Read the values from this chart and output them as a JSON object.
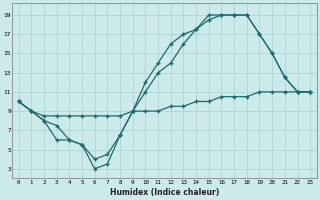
{
  "xlabel": "Humidex (Indice chaleur)",
  "bg_color": "#cdeaea",
  "grid_color": "#add4d4",
  "line_color": "#1a6b6b",
  "xlim": [
    -0.5,
    23.5
  ],
  "ylim": [
    2,
    20.2
  ],
  "xticks": [
    0,
    1,
    2,
    3,
    4,
    5,
    6,
    7,
    8,
    9,
    10,
    11,
    12,
    13,
    14,
    15,
    16,
    17,
    18,
    19,
    20,
    21,
    22,
    23
  ],
  "yticks": [
    3,
    5,
    7,
    9,
    11,
    13,
    15,
    17,
    19
  ],
  "line1_x": [
    0,
    1,
    2,
    3,
    4,
    5,
    6,
    7,
    8,
    9,
    10,
    11,
    12,
    13,
    14,
    15,
    16,
    17,
    18,
    19,
    20,
    21,
    22,
    23
  ],
  "line1_y": [
    10,
    9,
    8.5,
    8.5,
    8.5,
    8.5,
    8.5,
    8.5,
    8.5,
    9,
    9,
    9,
    9.5,
    9.5,
    10,
    10,
    10.5,
    10.5,
    10.5,
    11,
    11,
    11,
    11,
    11
  ],
  "line2_x": [
    0,
    1,
    2,
    3,
    4,
    5,
    6,
    7,
    8,
    9,
    10,
    11,
    12,
    13,
    14,
    15,
    16,
    17,
    18,
    19,
    20,
    21,
    22,
    23
  ],
  "line2_y": [
    10,
    9,
    8,
    6,
    6,
    5.5,
    3,
    3.5,
    6.5,
    9,
    12,
    14,
    16,
    17,
    17.5,
    19,
    19,
    19,
    19,
    17,
    15,
    12.5,
    11,
    11
  ],
  "line3_x": [
    0,
    1,
    2,
    3,
    4,
    5,
    6,
    7,
    8,
    9,
    10,
    11,
    12,
    13,
    14,
    15,
    16,
    17,
    18,
    19,
    20,
    21,
    22,
    23
  ],
  "line3_y": [
    10,
    9,
    8,
    7.5,
    6,
    5.5,
    4,
    4.5,
    6.5,
    9,
    11,
    13,
    14,
    16,
    17.5,
    18.5,
    19,
    19,
    19,
    17,
    15,
    12.5,
    11,
    11
  ]
}
